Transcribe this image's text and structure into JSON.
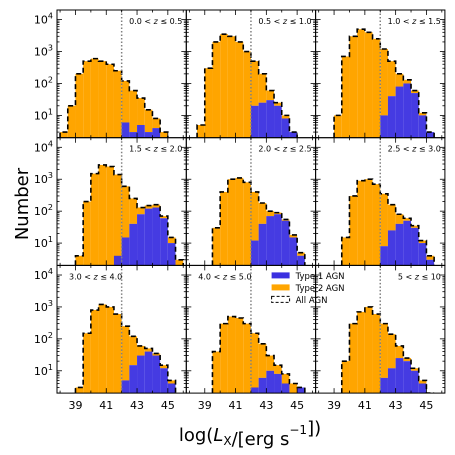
{
  "chart_data": {
    "type": "bar",
    "layout": "3x3 grid of step histograms with shared axes",
    "xlabel": "log(L_X/[erg s^-1])",
    "ylabel": "Number",
    "x_ticks": [
      39,
      41,
      43,
      45
    ],
    "y_scale": "log",
    "y_ticks": [
      10,
      100,
      1000,
      10000
    ],
    "y_tick_labels": [
      "10^1",
      "10^2",
      "10^3",
      "10^4"
    ],
    "xlim": [
      37.8,
      46.2
    ],
    "ylim": [
      2,
      20000
    ],
    "bin_width": 0.5,
    "threshold": 42,
    "legend": {
      "placement": "bottom-center panel, top-right",
      "entries": [
        {
          "key": "type1",
          "label": "Type 1 AGN"
        },
        {
          "key": "type2",
          "label": "Type 2 AGN"
        },
        {
          "key": "all",
          "label": "All AGN"
        }
      ]
    },
    "colors": {
      "type1": "#3b30e0",
      "type2": "#ffa500",
      "all": "#000000",
      "threshold": "#808080"
    },
    "panels": [
      {
        "z_label": "0.0 < z ≤ 0.5",
        "z_label_position": "top-right",
        "type1_bins": [
          [
            41.5,
            2
          ],
          [
            42.0,
            6
          ],
          [
            42.5,
            3
          ],
          [
            43.0,
            5
          ],
          [
            43.5,
            3
          ],
          [
            44.0,
            4
          ],
          [
            44.5,
            2
          ]
        ],
        "all_bins": [
          [
            38.0,
            3
          ],
          [
            38.5,
            20
          ],
          [
            39.0,
            200
          ],
          [
            39.5,
            500
          ],
          [
            40.0,
            600
          ],
          [
            40.5,
            500
          ],
          [
            41.0,
            400
          ],
          [
            41.5,
            250
          ],
          [
            42.0,
            120
          ],
          [
            42.5,
            60
          ],
          [
            43.0,
            35
          ],
          [
            43.5,
            15
          ],
          [
            44.0,
            8
          ],
          [
            44.5,
            3
          ]
        ]
      },
      {
        "z_label": "0.5 < z ≤ 1.0",
        "z_label_position": "top-right",
        "type1_bins": [
          [
            42.0,
            20
          ],
          [
            42.5,
            25
          ],
          [
            43.0,
            30
          ],
          [
            43.5,
            20
          ],
          [
            44.0,
            8
          ],
          [
            44.5,
            3
          ]
        ],
        "all_bins": [
          [
            38.5,
            5
          ],
          [
            39.0,
            300
          ],
          [
            39.5,
            2000
          ],
          [
            40.0,
            3500
          ],
          [
            40.5,
            3000
          ],
          [
            41.0,
            2000
          ],
          [
            41.5,
            1000
          ],
          [
            42.0,
            500
          ],
          [
            42.5,
            200
          ],
          [
            43.0,
            60
          ],
          [
            43.5,
            25
          ],
          [
            44.0,
            10
          ],
          [
            44.5,
            3
          ]
        ]
      },
      {
        "z_label": "1.0 < z ≤ 1.5",
        "z_label_position": "top-right",
        "type1_bins": [
          [
            42.0,
            10
          ],
          [
            42.5,
            40
          ],
          [
            43.0,
            80
          ],
          [
            43.5,
            100
          ],
          [
            44.0,
            50
          ],
          [
            44.5,
            10
          ],
          [
            45.0,
            3
          ]
        ],
        "all_bins": [
          [
            39.0,
            10
          ],
          [
            39.5,
            700
          ],
          [
            40.0,
            3000
          ],
          [
            40.5,
            5000
          ],
          [
            41.0,
            4000
          ],
          [
            41.5,
            2500
          ],
          [
            42.0,
            1200
          ],
          [
            42.5,
            500
          ],
          [
            43.0,
            200
          ],
          [
            43.5,
            130
          ],
          [
            44.0,
            60
          ],
          [
            44.5,
            12
          ],
          [
            45.0,
            3
          ]
        ]
      },
      {
        "z_label": "1.5 < z ≤ 2.0",
        "z_label_position": "top-right",
        "type1_bins": [
          [
            41.5,
            4
          ],
          [
            42.0,
            15
          ],
          [
            42.5,
            40
          ],
          [
            43.0,
            80
          ],
          [
            43.5,
            120
          ],
          [
            44.0,
            130
          ],
          [
            44.5,
            60
          ],
          [
            45.0,
            10
          ]
        ],
        "all_bins": [
          [
            39.0,
            4
          ],
          [
            39.5,
            200
          ],
          [
            40.0,
            1500
          ],
          [
            40.5,
            2800
          ],
          [
            41.0,
            2500
          ],
          [
            41.5,
            1400
          ],
          [
            42.0,
            600
          ],
          [
            42.5,
            250
          ],
          [
            43.0,
            130
          ],
          [
            43.5,
            150
          ],
          [
            44.0,
            160
          ],
          [
            44.5,
            70
          ],
          [
            45.0,
            15
          ],
          [
            45.5,
            3
          ]
        ]
      },
      {
        "z_label": "2.0 < z ≤ 2.5",
        "z_label_position": "top-right",
        "type1_bins": [
          [
            42.0,
            12
          ],
          [
            42.5,
            40
          ],
          [
            43.0,
            70
          ],
          [
            43.5,
            80
          ],
          [
            44.0,
            50
          ],
          [
            44.5,
            15
          ],
          [
            45.0,
            4
          ]
        ],
        "all_bins": [
          [
            39.5,
            30
          ],
          [
            40.0,
            400
          ],
          [
            40.5,
            1000
          ],
          [
            41.0,
            1100
          ],
          [
            41.5,
            800
          ],
          [
            42.0,
            400
          ],
          [
            42.5,
            180
          ],
          [
            43.0,
            100
          ],
          [
            43.5,
            90
          ],
          [
            44.0,
            55
          ],
          [
            44.5,
            18
          ],
          [
            45.0,
            5
          ]
        ]
      },
      {
        "z_label": "2.5 < z ≤ 3.0",
        "z_label_position": "top-right",
        "type1_bins": [
          [
            42.0,
            8
          ],
          [
            42.5,
            25
          ],
          [
            43.0,
            40
          ],
          [
            43.5,
            50
          ],
          [
            44.0,
            30
          ],
          [
            44.5,
            10
          ],
          [
            45.0,
            3
          ]
        ],
        "all_bins": [
          [
            39.5,
            15
          ],
          [
            40.0,
            300
          ],
          [
            40.5,
            900
          ],
          [
            41.0,
            1000
          ],
          [
            41.5,
            700
          ],
          [
            42.0,
            350
          ],
          [
            42.5,
            160
          ],
          [
            43.0,
            80
          ],
          [
            43.5,
            60
          ],
          [
            44.0,
            35
          ],
          [
            44.5,
            12
          ],
          [
            45.0,
            4
          ]
        ]
      },
      {
        "z_label": "3.0 < z ≤ 4.0",
        "z_label_position": "top-left",
        "type1_bins": [
          [
            42.0,
            5
          ],
          [
            42.5,
            15
          ],
          [
            43.0,
            30
          ],
          [
            43.5,
            40
          ],
          [
            44.0,
            30
          ],
          [
            44.5,
            12
          ],
          [
            45.0,
            4
          ]
        ],
        "all_bins": [
          [
            39.0,
            3
          ],
          [
            39.5,
            150
          ],
          [
            40.0,
            800
          ],
          [
            40.5,
            1200
          ],
          [
            41.0,
            1000
          ],
          [
            41.5,
            600
          ],
          [
            42.0,
            250
          ],
          [
            42.5,
            120
          ],
          [
            43.0,
            60
          ],
          [
            43.5,
            50
          ],
          [
            44.0,
            35
          ],
          [
            44.5,
            15
          ],
          [
            45.0,
            5
          ]
        ]
      },
      {
        "z_label": "4.0 < z ≤ 5.0",
        "z_label_position": "top-left",
        "type1_bins": [
          [
            42.0,
            3
          ],
          [
            42.5,
            6
          ],
          [
            43.0,
            10
          ],
          [
            43.5,
            8
          ],
          [
            44.0,
            4
          ],
          [
            44.5,
            2
          ],
          [
            45.0,
            3
          ]
        ],
        "all_bins": [
          [
            39.5,
            40
          ],
          [
            40.0,
            300
          ],
          [
            40.5,
            500
          ],
          [
            41.0,
            450
          ],
          [
            41.5,
            300
          ],
          [
            42.0,
            150
          ],
          [
            42.5,
            70
          ],
          [
            43.0,
            30
          ],
          [
            43.5,
            15
          ],
          [
            44.0,
            8
          ],
          [
            44.5,
            4
          ],
          [
            45.0,
            3
          ]
        ]
      },
      {
        "z_label": "5 < z ≤ 10",
        "z_label_position": "top-right",
        "type1_bins": [
          [
            42.0,
            6
          ],
          [
            42.5,
            12
          ],
          [
            43.0,
            25
          ],
          [
            43.5,
            20
          ],
          [
            44.0,
            10
          ],
          [
            44.5,
            4
          ]
        ],
        "all_bins": [
          [
            39.5,
            20
          ],
          [
            40.0,
            300
          ],
          [
            40.5,
            700
          ],
          [
            41.0,
            1000
          ],
          [
            41.5,
            600
          ],
          [
            42.0,
            300
          ],
          [
            42.5,
            140
          ],
          [
            43.0,
            60
          ],
          [
            43.5,
            25
          ],
          [
            44.0,
            12
          ],
          [
            44.5,
            5
          ],
          [
            45.0,
            2
          ]
        ]
      }
    ]
  }
}
